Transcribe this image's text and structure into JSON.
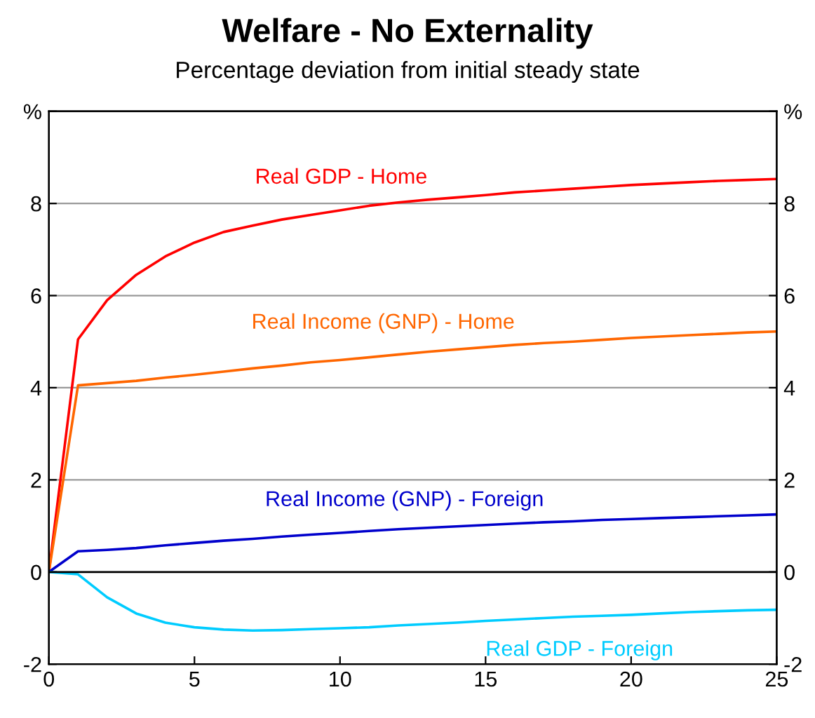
{
  "chart_data": {
    "type": "line",
    "title": "Welfare - No Externality",
    "subtitle": "Percentage deviation from initial steady state",
    "x": [
      0,
      1,
      2,
      3,
      4,
      5,
      6,
      7,
      8,
      9,
      10,
      11,
      12,
      13,
      14,
      15,
      16,
      17,
      18,
      19,
      20,
      21,
      22,
      23,
      24,
      25
    ],
    "series": [
      {
        "name": "Real GDP - Home",
        "color": "#ff0000",
        "values": [
          0,
          5.05,
          5.9,
          6.45,
          6.85,
          7.15,
          7.38,
          7.52,
          7.65,
          7.75,
          7.85,
          7.95,
          8.02,
          8.08,
          8.13,
          8.18,
          8.24,
          8.28,
          8.32,
          8.36,
          8.4,
          8.43,
          8.46,
          8.49,
          8.51,
          8.53
        ]
      },
      {
        "name": "Real Income (GNP) - Home",
        "color": "#ff6600",
        "values": [
          0,
          4.05,
          4.1,
          4.15,
          4.22,
          4.28,
          4.35,
          4.42,
          4.48,
          4.55,
          4.6,
          4.66,
          4.72,
          4.78,
          4.83,
          4.88,
          4.93,
          4.97,
          5.0,
          5.04,
          5.08,
          5.11,
          5.14,
          5.17,
          5.2,
          5.22
        ]
      },
      {
        "name": "Real Income (GNP) - Foreign",
        "color": "#0000cc",
        "values": [
          0,
          0.45,
          0.48,
          0.52,
          0.58,
          0.63,
          0.68,
          0.72,
          0.77,
          0.81,
          0.85,
          0.89,
          0.93,
          0.96,
          0.99,
          1.02,
          1.05,
          1.08,
          1.1,
          1.13,
          1.15,
          1.17,
          1.19,
          1.21,
          1.23,
          1.25
        ]
      },
      {
        "name": "Real GDP - Foreign",
        "color": "#00ccff",
        "values": [
          0,
          -0.05,
          -0.55,
          -0.9,
          -1.1,
          -1.2,
          -1.25,
          -1.27,
          -1.26,
          -1.24,
          -1.22,
          -1.2,
          -1.16,
          -1.13,
          -1.1,
          -1.06,
          -1.03,
          -1.0,
          -0.97,
          -0.95,
          -0.93,
          -0.9,
          -0.87,
          -0.85,
          -0.83,
          -0.82
        ]
      }
    ],
    "xlim": [
      0,
      25
    ],
    "xticks": [
      0,
      5,
      10,
      15,
      20,
      25
    ],
    "ylim": [
      -2,
      10
    ],
    "yticks": [
      -2,
      0,
      2,
      4,
      6,
      8,
      {
        "value": 10,
        "label": "%"
      }
    ],
    "y2lim": [
      -2,
      10
    ],
    "y2ticks": [
      -2,
      0,
      2,
      4,
      6,
      8,
      {
        "value": 10,
        "label": "%"
      }
    ],
    "grid": "y",
    "legend": false,
    "marker": "none",
    "line_style": "solid"
  }
}
